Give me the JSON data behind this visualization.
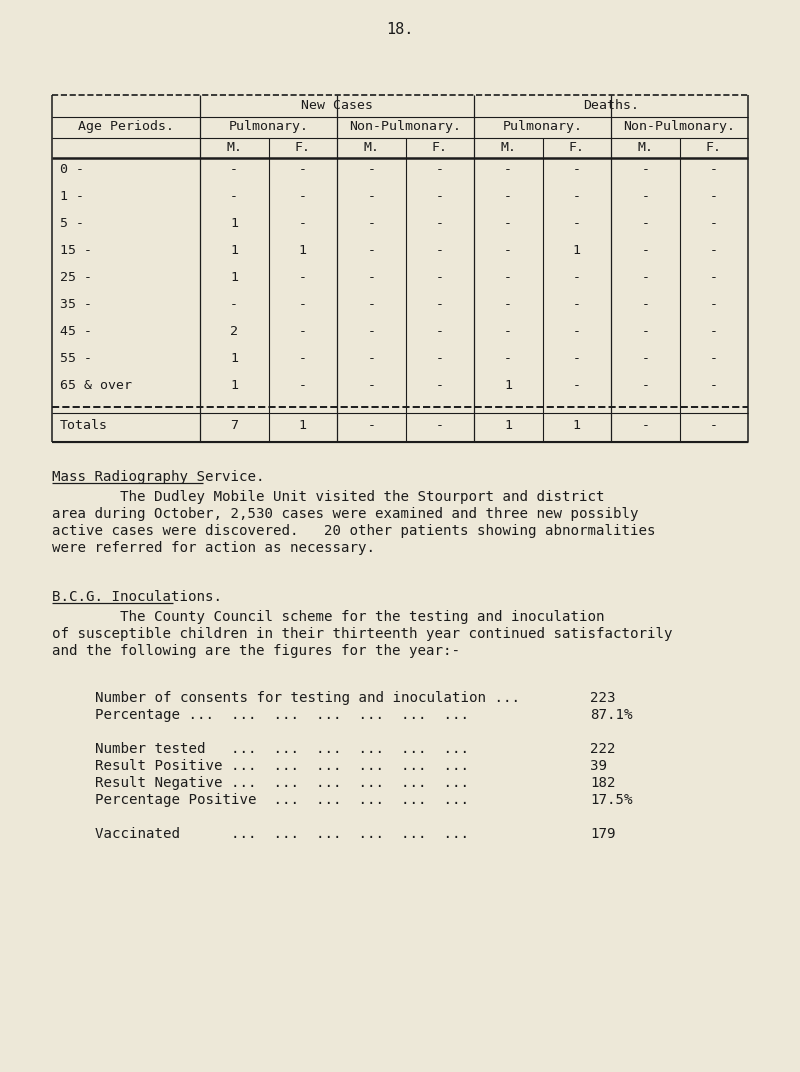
{
  "page_number": "18.",
  "bg_color": "#ede8d8",
  "text_color": "#1c1c1c",
  "table": {
    "rows": [
      [
        "0 -",
        "-",
        "-",
        "-",
        "-",
        "-",
        "-",
        "-",
        "-"
      ],
      [
        "1 -",
        "-",
        "-",
        "-",
        "-",
        "-",
        "-",
        "-",
        "-"
      ],
      [
        "5 -",
        "1",
        "-",
        "-",
        "-",
        "-",
        "-",
        "-",
        "-"
      ],
      [
        "15 -",
        "1",
        "1",
        "-",
        "-",
        "-",
        "1",
        "-",
        "-"
      ],
      [
        "25 -",
        "1",
        "-",
        "-",
        "-",
        "-",
        "-",
        "-",
        "-"
      ],
      [
        "35 -",
        "-",
        "-",
        "-",
        "-",
        "-",
        "-",
        "-",
        "-"
      ],
      [
        "45 -",
        "2",
        "-",
        "-",
        "-",
        "-",
        "-",
        "-",
        "-"
      ],
      [
        "55 -",
        "1",
        "-",
        "-",
        "-",
        "-",
        "-",
        "-",
        "-"
      ],
      [
        "65 & over",
        "1",
        "-",
        "-",
        "-",
        "1",
        "-",
        "-",
        "-"
      ]
    ],
    "totals": [
      "Totals",
      "7",
      "1",
      "-",
      "-",
      "1",
      "1",
      "-",
      "-"
    ]
  },
  "s1_title": "Mass Radiography Service.",
  "s1_lines": [
    "        The Dudley Mobile Unit visited the Stourport and district",
    "area during October, 2,530 cases were examined and three new possibly",
    "active cases were discovered.   20 other patients showing abnormalities",
    "were referred for action as necessary."
  ],
  "s2_title": "B.C.G. Inoculations.",
  "s2_lines": [
    "        The County Council scheme for the testing and inoculation",
    "of susceptible children in their thirteenth year continued satisfactorily",
    "and the following are the figures for the year:-"
  ],
  "stat_lines": [
    [
      "Number of consents for testing and inoculation ...",
      "223"
    ],
    [
      "Percentage ...  ...  ...  ...  ...  ...  ...",
      "87.1%"
    ],
    [
      "",
      ""
    ],
    [
      "Number tested   ...  ...  ...  ...  ...  ...",
      "222"
    ],
    [
      "Result Positive ...  ...  ...  ...  ...  ...",
      "39"
    ],
    [
      "Result Negative ...  ...  ...  ...  ...  ...",
      "182"
    ],
    [
      "Percentage Positive  ...  ...  ...  ...  ...",
      "17.5%"
    ],
    [
      "",
      ""
    ],
    [
      "Vaccinated      ...  ...  ...  ...  ...  ...",
      "179"
    ]
  ]
}
